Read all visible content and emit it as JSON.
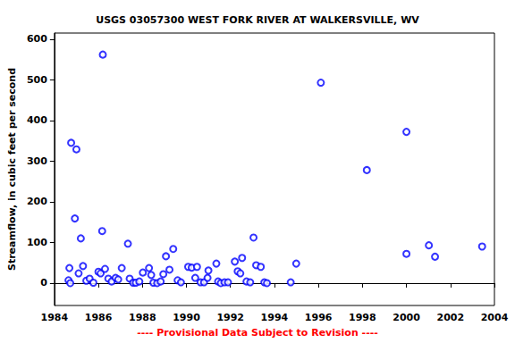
{
  "chart_data": {
    "type": "scatter",
    "title": "USGS 03057300 WEST FORK RIVER AT WALKERSVILLE, WV",
    "y_label": "Streamflow, in cubic feet per second",
    "annotation": "---- Provisional Data Subject to Revision ----",
    "x": [
      1984.64,
      1984.68,
      1984.72,
      1984.76,
      1984.93,
      1985.0,
      1985.1,
      1985.2,
      1985.3,
      1985.45,
      1985.6,
      1985.77,
      1986.0,
      1986.1,
      1986.17,
      1986.2,
      1986.3,
      1986.45,
      1986.6,
      1986.78,
      1986.9,
      1987.06,
      1987.34,
      1987.42,
      1987.58,
      1987.7,
      1987.86,
      1988.02,
      1988.3,
      1988.4,
      1988.5,
      1988.67,
      1988.83,
      1988.95,
      1989.07,
      1989.23,
      1989.4,
      1989.6,
      1989.75,
      1990.08,
      1990.24,
      1990.4,
      1990.48,
      1990.64,
      1990.8,
      1990.96,
      1991.0,
      1991.36,
      1991.44,
      1991.56,
      1991.73,
      1991.89,
      1992.2,
      1992.33,
      1992.45,
      1992.53,
      1992.73,
      1992.9,
      1993.05,
      1993.17,
      1993.38,
      1993.54,
      1993.66,
      1994.74,
      1994.99,
      1996.11,
      1998.2,
      2000.0,
      2000.0,
      2001.02,
      2001.3,
      2003.44
    ],
    "values": [
      7,
      37,
      0,
      345,
      159,
      329,
      24,
      110,
      42,
      6,
      11,
      1,
      28,
      24,
      128,
      562,
      35,
      11,
      4,
      13,
      9,
      37,
      97,
      11,
      1,
      1,
      4,
      26,
      37,
      20,
      1,
      0,
      4,
      22,
      66,
      33,
      84,
      7,
      2,
      40,
      38,
      13,
      40,
      2,
      2,
      13,
      31,
      48,
      4,
      0,
      2,
      2,
      53,
      29,
      24,
      62,
      4,
      2,
      112,
      44,
      40,
      2,
      0,
      2,
      48,
      493,
      278,
      372,
      72,
      93,
      65,
      90
    ],
    "color": "#0000ff",
    "marker": "open circle",
    "xlim": [
      1984,
      2004
    ],
    "xticks": [
      1984,
      1986,
      1988,
      1990,
      1992,
      1994,
      1996,
      1998,
      2000,
      2002,
      2004
    ],
    "ylim": [
      -55,
      615
    ],
    "yticks": [
      0,
      100,
      200,
      300,
      400,
      500,
      600
    ],
    "grid": false
  }
}
